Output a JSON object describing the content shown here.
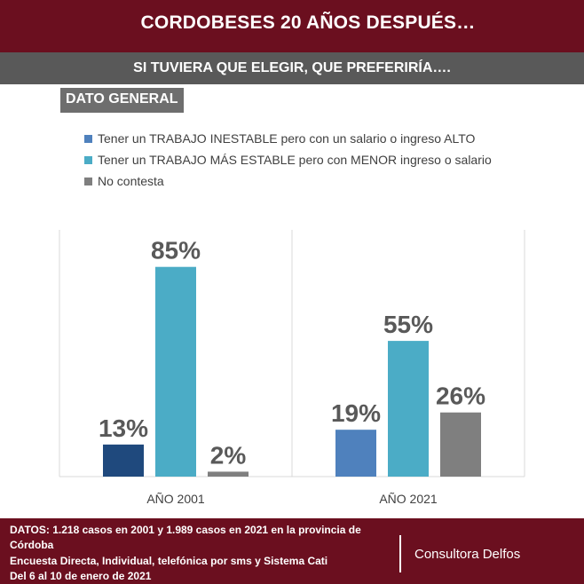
{
  "header": {
    "title": "CORDOBESES 20 AÑOS DESPUÉS…",
    "subtitle": "SI TUVIERA QUE ELEGIR, QUE PREFERIRÍA….",
    "section_label": "DATO GENERAL"
  },
  "chart_data": {
    "type": "bar",
    "title": "",
    "xlabel": "",
    "ylabel": "",
    "ylim": [
      0,
      100
    ],
    "grid": false,
    "legend_position": "top-left",
    "categories": [
      "AÑO 2001",
      "AÑO 2021"
    ],
    "series": [
      {
        "name": "Tener un TRABAJO INESTABLE pero con un salario o ingreso ALTO",
        "values": [
          13,
          19
        ],
        "labels": [
          "13%",
          "19%"
        ],
        "colors": [
          "#1f497d",
          "#4f81bd"
        ],
        "legend_color": "#4f81bd"
      },
      {
        "name": "Tener un TRABAJO MÁS ESTABLE pero con MENOR ingreso o salario",
        "values": [
          85,
          55
        ],
        "labels": [
          "85%",
          "55%"
        ],
        "colors": [
          "#4bacc6",
          "#4bacc6"
        ],
        "legend_color": "#4bacc6"
      },
      {
        "name": "No contesta",
        "values": [
          2,
          26
        ],
        "labels": [
          "2%",
          "26%"
        ],
        "colors": [
          "#7f7f7f",
          "#7f7f7f"
        ],
        "legend_color": "#7f7f7f"
      }
    ]
  },
  "footer": {
    "line1": "DATOS: 1.218  casos en 2001  y 1.989  casos en 2021  en la provincia de",
    "line2": "Córdoba",
    "line3": "Encuesta Directa, Individual, telefónica por sms y Sistema Cati",
    "line4": "Del 6 al 10  de enero de 2021",
    "company": "Consultora Delfos"
  }
}
